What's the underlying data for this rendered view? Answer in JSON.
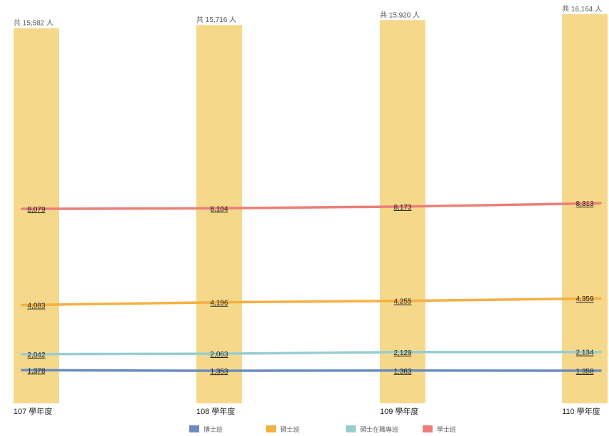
{
  "chart_data": {
    "type": "bar",
    "categories": [
      "107 學年度",
      "108 學年度",
      "109 學年度",
      "110 學年度"
    ],
    "totals": [
      15582,
      15716,
      15920,
      16164
    ],
    "total_labels": [
      "共 15,582 人",
      "共 15,716 人",
      "共 15,920 人",
      "共 16,164 人"
    ],
    "bar_color": "#f5d88a",
    "ylim": [
      0,
      16164
    ],
    "series": [
      {
        "name": "博士班",
        "type": "line",
        "color": "#6b8cc0",
        "values": [
          1378,
          1353,
          1363,
          1358
        ],
        "labels": [
          "1,378",
          "1,353",
          "1,363",
          "1,358"
        ]
      },
      {
        "name": "碩士班",
        "type": "line",
        "color": "#f5b041",
        "values": [
          4083,
          4196,
          4255,
          4359
        ],
        "labels": [
          "4,083",
          "4,196",
          "4,255",
          "4,359"
        ]
      },
      {
        "name": "碩士在職專班",
        "type": "line",
        "color": "#98cdd0",
        "values": [
          2042,
          2063,
          2129,
          2134
        ],
        "labels": [
          "2,042",
          "2,063",
          "2,129",
          "2,134"
        ]
      },
      {
        "name": "學士班",
        "type": "line",
        "color": "#ec7e78",
        "values": [
          8079,
          8104,
          8173,
          8313
        ],
        "labels": [
          "8,079",
          "8,104",
          "8,173",
          "8,313"
        ]
      }
    ],
    "legend_position": "bottom",
    "grid": false
  }
}
